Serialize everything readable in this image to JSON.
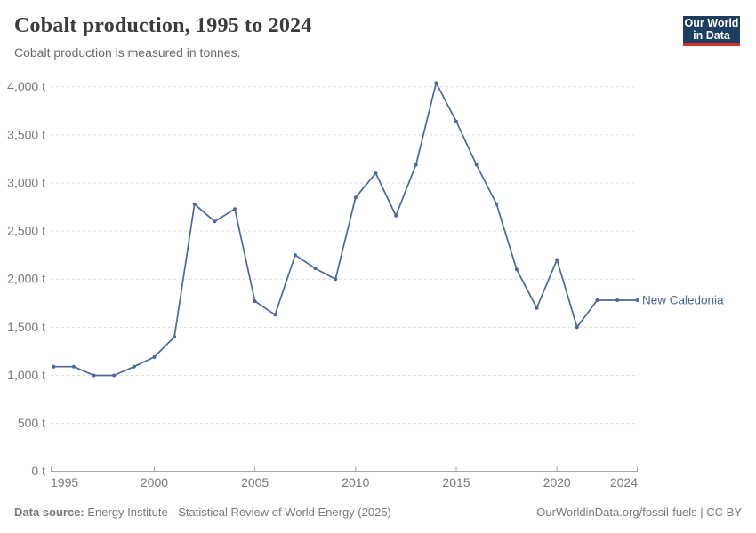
{
  "header": {
    "title": "Cobalt production, 1995 to 2024",
    "subtitle": "Cobalt production is measured in tonnes.",
    "logo": {
      "line1": "Our World",
      "line2": "in Data"
    }
  },
  "chart_data": {
    "type": "line",
    "title": "Cobalt production, 1995 to 2024",
    "subtitle": "Cobalt production is measured in tonnes.",
    "xlabel": "",
    "ylabel": "tonnes",
    "unit": "t",
    "xlim": [
      1995,
      2024
    ],
    "ylim": [
      0,
      4000
    ],
    "grid": true,
    "legend_position": "end-of-line",
    "x": [
      1995,
      1996,
      1997,
      1998,
      1999,
      2000,
      2001,
      2002,
      2003,
      2004,
      2005,
      2006,
      2007,
      2008,
      2009,
      2010,
      2011,
      2012,
      2013,
      2014,
      2015,
      2016,
      2017,
      2018,
      2019,
      2020,
      2021,
      2022,
      2023,
      2024
    ],
    "series": [
      {
        "name": "New Caledonia",
        "color": "#4a68a0",
        "values": [
          1090,
          1090,
          1000,
          1000,
          1090,
          1190,
          1400,
          2780,
          2600,
          2730,
          1770,
          1630,
          2250,
          2110,
          2000,
          2850,
          3100,
          2660,
          3190,
          4040,
          3640,
          3190,
          2780,
          2100,
          1700,
          2200,
          1500,
          1780,
          1780,
          1780
        ]
      }
    ],
    "yticks": [
      {
        "value": 0,
        "label": "0 t"
      },
      {
        "value": 500,
        "label": "500 t"
      },
      {
        "value": 1000,
        "label": "1,000 t"
      },
      {
        "value": 1500,
        "label": "1,500 t"
      },
      {
        "value": 2000,
        "label": "2,000 t"
      },
      {
        "value": 2500,
        "label": "2,500 t"
      },
      {
        "value": 3000,
        "label": "3,000 t"
      },
      {
        "value": 3500,
        "label": "3,500 t"
      },
      {
        "value": 4000,
        "label": "4,000 t"
      }
    ],
    "xticks": [
      {
        "value": 1995,
        "label": "1995",
        "align": "start"
      },
      {
        "value": 2000,
        "label": "2000",
        "align": "middle"
      },
      {
        "value": 2005,
        "label": "2005",
        "align": "middle"
      },
      {
        "value": 2010,
        "label": "2010",
        "align": "middle"
      },
      {
        "value": 2015,
        "label": "2015",
        "align": "middle"
      },
      {
        "value": 2020,
        "label": "2020",
        "align": "middle"
      },
      {
        "value": 2024,
        "label": "2024",
        "align": "end"
      }
    ]
  },
  "footer": {
    "source_label": "Data source:",
    "source_text": " Energy Institute - Statistical Review of World Energy (2025)",
    "link_text": "OurWorldinData.org/fossil-fuels | CC BY"
  },
  "colors": {
    "line": "#4a68a0",
    "grid": "#dcdcdc",
    "axis": "#a5a5a5",
    "tick_label": "#787878",
    "logo_bg": "#1d3d63",
    "logo_accent": "#d13328"
  }
}
